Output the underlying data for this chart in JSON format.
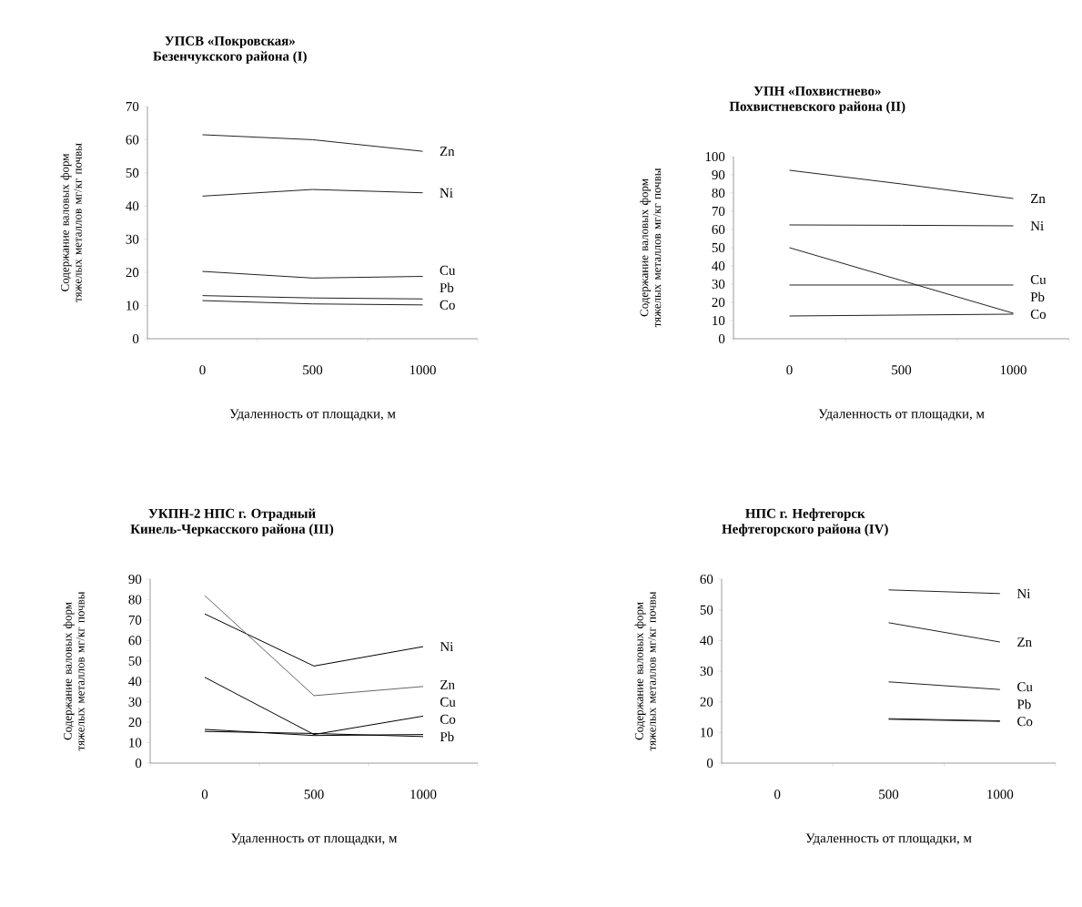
{
  "chart_data": [
    {
      "type": "line",
      "title": "УПСВ «Покровская»",
      "subtitle": "Безенчукского района (I)",
      "xlabel": "Удаленность от площадки, м",
      "ylabel": "Содержание валовых форм тяжелых металлов мг/кг почвы",
      "categories": [
        "0",
        "500",
        "1000"
      ],
      "ylim": [
        0,
        70
      ],
      "yticks": [
        0,
        10,
        20,
        30,
        40,
        50,
        60,
        70
      ],
      "legend": false,
      "marker": "none",
      "line_style": "solid",
      "series": [
        {
          "name": "Zn",
          "color": "#222222",
          "values": [
            61.5,
            60,
            56.5
          ]
        },
        {
          "name": "Ni",
          "color": "#222222",
          "values": [
            43,
            45,
            44
          ]
        },
        {
          "name": "Cu",
          "color": "#222222",
          "values": [
            20.3,
            18.3,
            18.8
          ]
        },
        {
          "name": "Pb",
          "color": "#222222",
          "values": [
            13,
            12.3,
            12
          ]
        },
        {
          "name": "Co",
          "color": "#222222",
          "values": [
            11.5,
            10.5,
            10.2
          ]
        }
      ]
    },
    {
      "type": "line",
      "title": "УПН «Похвистнево»",
      "subtitle": "Похвистневского района (II)",
      "xlabel": "Удаленность от площадки, м",
      "ylabel": "Содержание валовых форм тяжелых металлов мг/кг почвы",
      "categories": [
        "0",
        "500",
        "1000"
      ],
      "ylim": [
        0,
        100
      ],
      "yticks": [
        0,
        10,
        20,
        30,
        40,
        50,
        60,
        70,
        80,
        90,
        100
      ],
      "legend": false,
      "marker": "none",
      "line_style": "solid",
      "series": [
        {
          "name": "Zn",
          "color": "#222222",
          "values": [
            92.5,
            85,
            77
          ]
        },
        {
          "name": "Ni",
          "color": "#222222",
          "values": [
            62.5,
            62.3,
            62
          ]
        },
        {
          "name": "Cu",
          "color": "#222222",
          "values": [
            29.5,
            29.5,
            29.5
          ]
        },
        {
          "name": "Pb",
          "color": "#222222",
          "values": [
            50,
            32,
            14
          ]
        },
        {
          "name": "Co",
          "color": "#222222",
          "values": [
            12.5,
            13,
            13.5
          ]
        }
      ]
    },
    {
      "type": "line",
      "title": "УКПН-2 НПС г. Отрадный",
      "subtitle": "Кинель-Черкасского района (III)",
      "xlabel": "Удаленность от площадки, м",
      "ylabel": "Содержание валовых форм тяжелых металлов мг/кг почвы",
      "categories": [
        "0",
        "500",
        "1000"
      ],
      "ylim": [
        0,
        90
      ],
      "yticks": [
        0,
        10,
        20,
        30,
        40,
        50,
        60,
        70,
        80,
        90
      ],
      "legend": false,
      "marker": "none",
      "line_style": "solid",
      "series": [
        {
          "name": "Ni",
          "color": "#000000",
          "values": [
            73,
            47.5,
            57
          ]
        },
        {
          "name": "Zn",
          "color": "#666666",
          "values": [
            82,
            33,
            37.5
          ]
        },
        {
          "name": "Cu",
          "color": "#000000",
          "values": [
            42,
            14,
            23
          ]
        },
        {
          "name": "Co",
          "color": "#000000",
          "values": [
            16.5,
            13.5,
            14
          ]
        },
        {
          "name": "Pb",
          "color": "#000000",
          "values": [
            15.5,
            14.5,
            13
          ]
        }
      ]
    },
    {
      "type": "line",
      "title": "НПС г. Нефтегорск",
      "subtitle": "Нефтегорского района (IV)",
      "xlabel": "Удаленность от площадки, м",
      "ylabel": "Содержание валовых форм тяжелых металлов мг/кг почвы",
      "categories": [
        "0",
        "500",
        "1000"
      ],
      "ylim": [
        0,
        60
      ],
      "yticks": [
        0,
        10,
        20,
        30,
        40,
        50,
        60
      ],
      "legend": false,
      "marker": "none",
      "line_style": "solid",
      "series": [
        {
          "name": "Ni",
          "color": "#222222",
          "values": [
            null,
            56.5,
            55.3
          ]
        },
        {
          "name": "Zn",
          "color": "#222222",
          "values": [
            null,
            45.8,
            39.5
          ]
        },
        {
          "name": "Cu",
          "color": "#222222",
          "values": [
            null,
            26.5,
            24
          ]
        },
        {
          "name": "Pb",
          "color": "#222222",
          "values": [
            null,
            14.5,
            13.8
          ]
        },
        {
          "name": "Co",
          "color": "#222222",
          "values": [
            null,
            14.3,
            13.6
          ]
        }
      ]
    }
  ]
}
